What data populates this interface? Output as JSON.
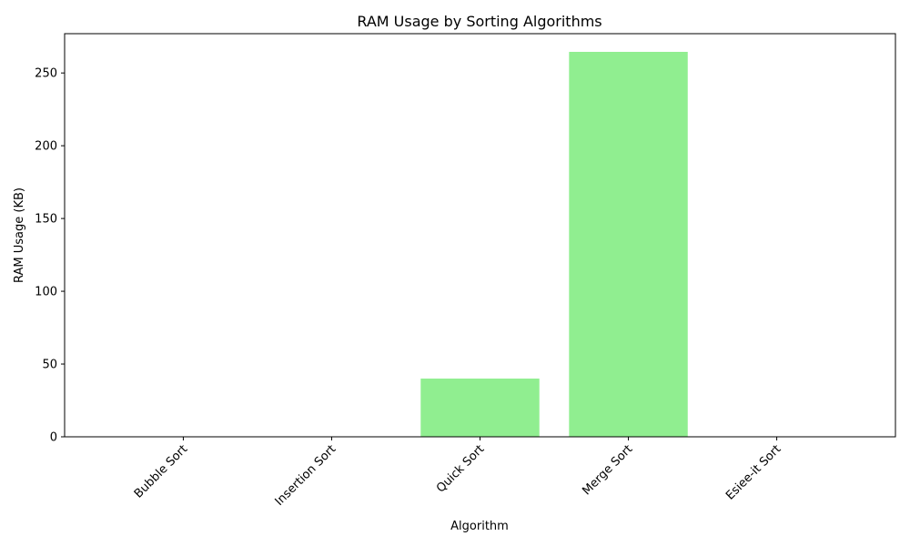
{
  "chart_data": {
    "type": "bar",
    "title": "RAM Usage by Sorting Algorithms",
    "xlabel": "Algorithm",
    "ylabel": "RAM Usage (KB)",
    "categories": [
      "Bubble Sort",
      "Insertion Sort",
      "Quick Sort",
      "Merge Sort",
      "Esiee-it Sort"
    ],
    "values": [
      0,
      0,
      40,
      264.5,
      0
    ],
    "ylim": [
      0,
      277
    ],
    "yticks": [
      0,
      50,
      100,
      150,
      200,
      250
    ],
    "bar_color": "#90ee90",
    "grid": false,
    "legend": "none"
  }
}
